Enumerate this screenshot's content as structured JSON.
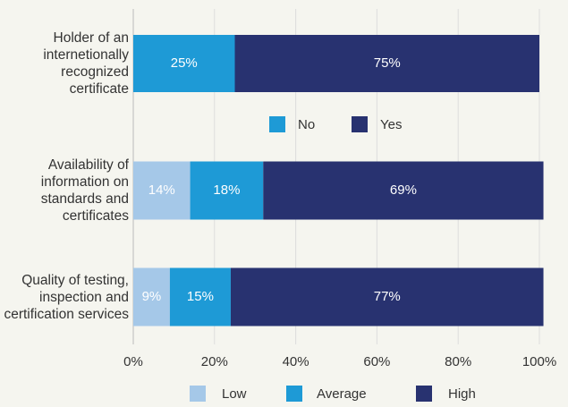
{
  "chart_data": [
    {
      "type": "stacked-bar-horizontal",
      "categories": [
        "Holder of an internetionally recognized certificate"
      ],
      "series": [
        {
          "name": "No",
          "color": "#1e9ad6",
          "values": [
            25
          ],
          "value_labels": [
            "25%"
          ]
        },
        {
          "name": "Yes",
          "color": "#283270",
          "values": [
            75
          ],
          "value_labels": [
            "75%"
          ]
        }
      ],
      "xlim": [
        0,
        100
      ],
      "xticks": [
        {
          "value": 0,
          "label": "0%"
        },
        {
          "value": 20,
          "label": "20%"
        },
        {
          "value": 40,
          "label": "40%"
        },
        {
          "value": 60,
          "label": "60%"
        },
        {
          "value": 80,
          "label": "80%"
        },
        {
          "value": 100,
          "label": "100%"
        }
      ],
      "grid": true
    },
    {
      "type": "stacked-bar-horizontal",
      "categories": [
        "Availability of information on standards and certificates",
        "Quality of testing, inspection and certification services"
      ],
      "series": [
        {
          "name": "Low",
          "color": "#a5c8e8",
          "values": [
            14,
            9
          ],
          "value_labels": [
            "14%",
            "9%"
          ]
        },
        {
          "name": "Average",
          "color": "#1e9ad6",
          "values": [
            18,
            15
          ],
          "value_labels": [
            "18%",
            "15%"
          ]
        },
        {
          "name": "High",
          "color": "#283270",
          "values": [
            69,
            77
          ],
          "value_labels": [
            "69%",
            "77%"
          ]
        }
      ],
      "xlim": [
        0,
        100
      ],
      "xticks": [
        {
          "value": 0,
          "label": "0%"
        },
        {
          "value": 20,
          "label": "20%"
        },
        {
          "value": 40,
          "label": "40%"
        },
        {
          "value": 60,
          "label": "60%"
        },
        {
          "value": 80,
          "label": "80%"
        },
        {
          "value": 100,
          "label": "100%"
        }
      ],
      "grid": true
    }
  ]
}
